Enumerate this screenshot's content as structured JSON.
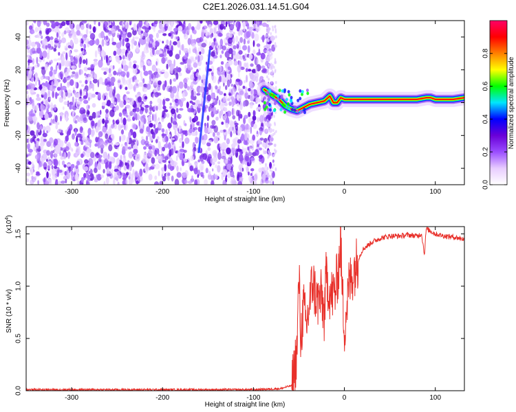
{
  "title": "C2E1.2026.031.14.51.G04",
  "chart_data": [
    {
      "type": "heatmap",
      "name": "spectrogram",
      "xlabel": "Height of straight line (km)",
      "ylabel": "Frequency (Hz)",
      "xlim": [
        -350,
        132
      ],
      "ylim": [
        -50,
        50
      ],
      "xticks": [
        -300,
        -200,
        -100,
        0,
        100
      ],
      "yticks": [
        -40,
        -20,
        0,
        20,
        40
      ],
      "xtick_labels": [
        "-300",
        "-200",
        "-100",
        "0",
        "100"
      ],
      "ytick_labels": [
        "-40",
        "-20",
        "0",
        "20",
        "40"
      ],
      "noise_region_x": [
        -350,
        -78
      ],
      "signal_trace": {
        "x": [
          -88,
          -80,
          -72,
          -65,
          -58,
          -52,
          -45,
          -38,
          -30,
          -22,
          -16,
          -12,
          -8,
          -4,
          0,
          20,
          40,
          60,
          80,
          90,
          95,
          100,
          110,
          120,
          132
        ],
        "y": [
          8,
          5,
          2,
          -2,
          -4,
          -5,
          -3,
          -1,
          0,
          1,
          4,
          0,
          0,
          3,
          2,
          2,
          2,
          2,
          2,
          3,
          3,
          2,
          2,
          2,
          3
        ]
      },
      "streak": {
        "x": [
          -160,
          -148
        ],
        "y": [
          -30,
          32
        ]
      },
      "colorbar": {
        "label": "Normalized spectral amplitude",
        "range": [
          0,
          1
        ],
        "ticks": [
          0.0,
          0.2,
          0.4,
          0.6,
          0.8
        ],
        "tick_labels": [
          "0.0",
          "0.2",
          "0.4",
          "0.6",
          "0.8"
        ],
        "colors": [
          "#ffffff",
          "#e8ccff",
          "#9a4dff",
          "#6a00d8",
          "#0000ff",
          "#00e6ff",
          "#00ff00",
          "#ffff00",
          "#ff8000",
          "#ff0000",
          "#ff0066"
        ]
      }
    },
    {
      "type": "line",
      "name": "snr",
      "xlabel": "Height of straight line (km)",
      "ylabel": "SNR (10 * v/v)",
      "yscale_label": "(x10",
      "yscale_exp": "4",
      "xlim": [
        -350,
        132
      ],
      "ylim": [
        0,
        1.57
      ],
      "xticks": [
        -300,
        -200,
        -100,
        0,
        100
      ],
      "yticks": [
        0.0,
        0.5,
        1.0,
        1.5
      ],
      "xtick_labels": [
        "-300",
        "-200",
        "-100",
        "0",
        "100"
      ],
      "ytick_labels": [
        "0.0",
        "0.5",
        "1.0",
        "1.5"
      ],
      "color": "#e8302a",
      "series": [
        {
          "name": "SNR",
          "x": [
            -350,
            -300,
            -250,
            -200,
            -150,
            -100,
            -70,
            -58,
            -55,
            -52,
            -50,
            -48,
            -45,
            -42,
            -38,
            -35,
            -30,
            -25,
            -22,
            -20,
            -15,
            -10,
            -6,
            -4,
            -3,
            -2,
            0,
            5,
            10,
            15,
            20,
            30,
            40,
            50,
            60,
            70,
            80,
            85,
            88,
            90,
            100,
            110,
            120,
            132
          ],
          "y": [
            0.01,
            0.01,
            0.01,
            0.01,
            0.01,
            0.01,
            0.02,
            0.05,
            0.2,
            0.4,
            1.13,
            0.5,
            0.8,
            0.6,
            0.85,
            1.05,
            0.85,
            0.9,
            0.7,
            1.1,
            0.9,
            0.95,
            1.2,
            1.45,
            1.1,
            0.9,
            0.6,
            1.0,
            1.15,
            1.25,
            1.35,
            1.42,
            1.46,
            1.48,
            1.48,
            1.49,
            1.48,
            1.5,
            1.3,
            1.55,
            1.5,
            1.48,
            1.47,
            1.45
          ]
        }
      ]
    }
  ]
}
